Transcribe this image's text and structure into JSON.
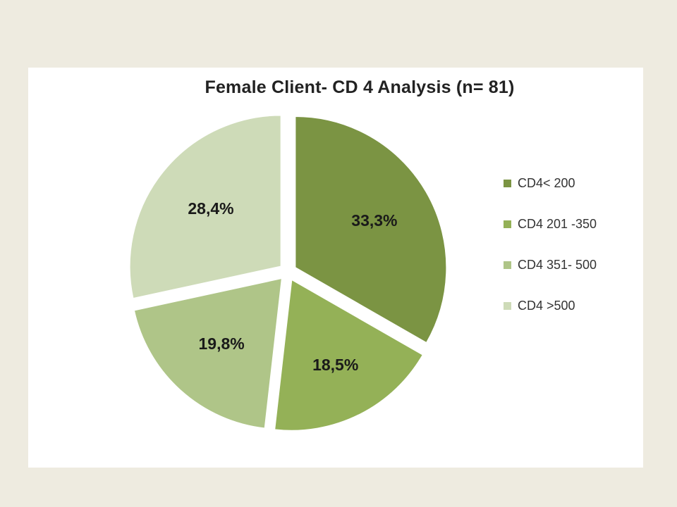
{
  "chart_data": {
    "type": "pie",
    "title": "Female Client- CD 4 Analysis (n= 81)",
    "categories": [
      "CD4< 200",
      "CD4 201 -350",
      "CD4 351- 500",
      "CD4 >500"
    ],
    "values": [
      33.3,
      18.5,
      19.8,
      28.4
    ],
    "data_labels": [
      "33,3%",
      "18,5%",
      "19,8%",
      "28,4%"
    ],
    "colors": [
      "#7b9443",
      "#94b157",
      "#afc588",
      "#cedbb8"
    ],
    "exploded": true,
    "legend_position": "right"
  }
}
